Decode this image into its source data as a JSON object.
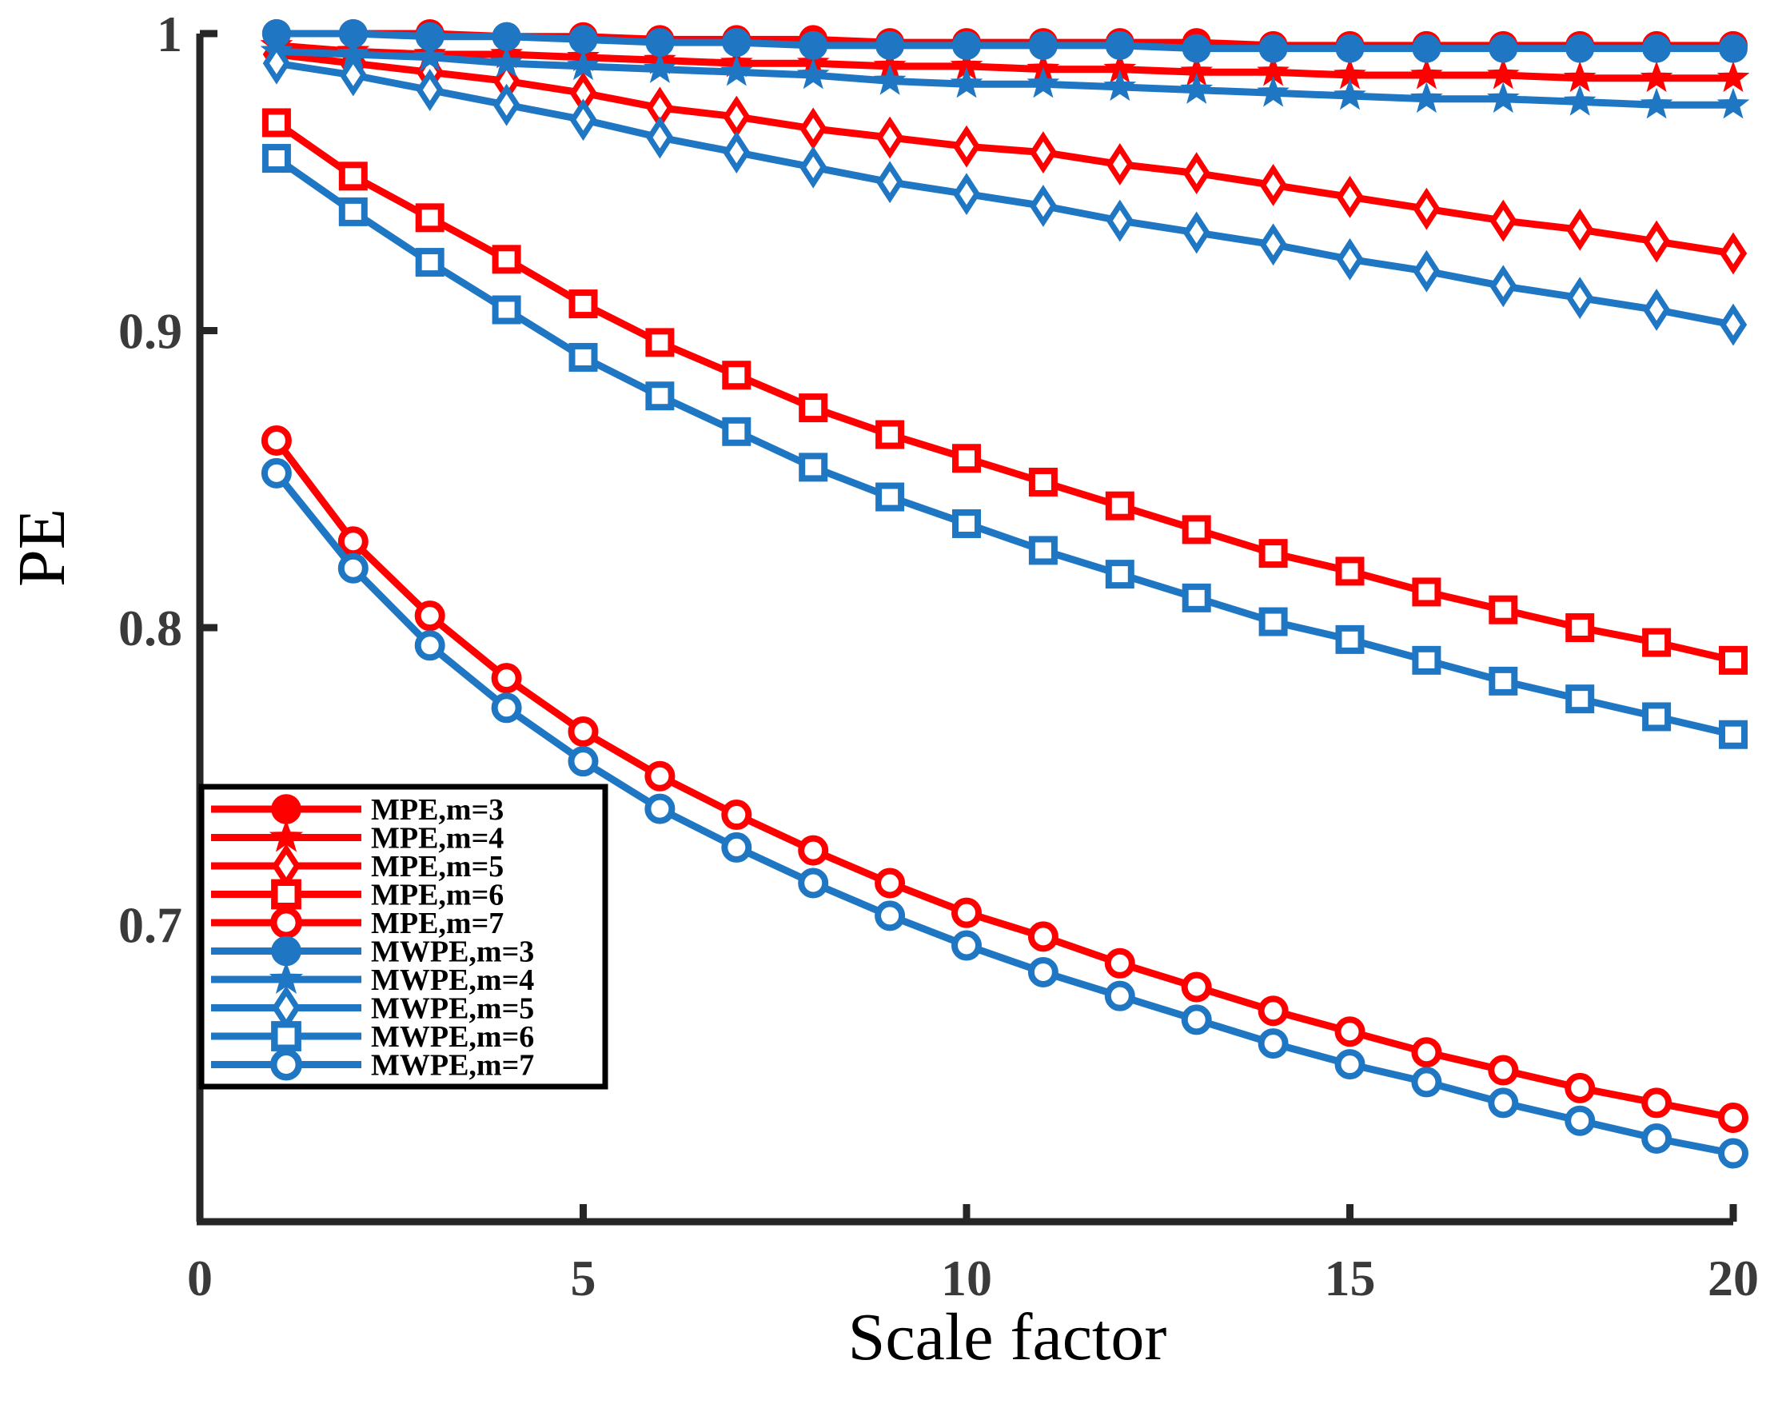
{
  "chart_data": {
    "type": "line",
    "title": "",
    "xlabel": "Scale factor",
    "ylabel": "PE",
    "xlim": [
      0,
      20
    ],
    "ylim": [
      0.6,
      1.0
    ],
    "x_ticks": [
      0,
      5,
      10,
      15,
      20
    ],
    "x_tick_labels": [
      "0",
      "5",
      "10",
      "15",
      "20"
    ],
    "y_ticks": [
      0.7,
      0.8,
      0.9,
      1.0
    ],
    "y_tick_labels": [
      "0.7",
      "0.8",
      "0.9",
      "1"
    ],
    "grid": false,
    "legend_position": "bottom-left",
    "x": [
      1,
      2,
      3,
      4,
      5,
      6,
      7,
      8,
      9,
      10,
      11,
      12,
      13,
      14,
      15,
      16,
      17,
      18,
      19,
      20
    ],
    "series": [
      {
        "name": "MPE,m=3",
        "color": "#ff0000",
        "marker": "circle-filled",
        "values": [
          1.0,
          1.0,
          1.0,
          0.999,
          0.999,
          0.998,
          0.998,
          0.998,
          0.997,
          0.997,
          0.997,
          0.997,
          0.997,
          0.996,
          0.996,
          0.996,
          0.996,
          0.996,
          0.996,
          0.996
        ]
      },
      {
        "name": "MPE,m=4",
        "color": "#ff0000",
        "marker": "star",
        "values": [
          0.996,
          0.994,
          0.993,
          0.993,
          0.992,
          0.991,
          0.99,
          0.99,
          0.989,
          0.989,
          0.988,
          0.988,
          0.987,
          0.987,
          0.986,
          0.986,
          0.986,
          0.985,
          0.985,
          0.985
        ]
      },
      {
        "name": "MPE,m=5",
        "color": "#ff0000",
        "marker": "diamond",
        "values": [
          0.993,
          0.99,
          0.987,
          0.984,
          0.98,
          0.975,
          0.972,
          0.968,
          0.965,
          0.962,
          0.96,
          0.956,
          0.953,
          0.949,
          0.945,
          0.941,
          0.937,
          0.934,
          0.93,
          0.926
        ]
      },
      {
        "name": "MPE,m=6",
        "color": "#ff0000",
        "marker": "square",
        "values": [
          0.97,
          0.952,
          0.938,
          0.924,
          0.909,
          0.896,
          0.885,
          0.874,
          0.865,
          0.857,
          0.849,
          0.841,
          0.833,
          0.825,
          0.819,
          0.812,
          0.806,
          0.8,
          0.795,
          0.789
        ]
      },
      {
        "name": "MPE,m=7",
        "color": "#ff0000",
        "marker": "circle-open",
        "values": [
          0.863,
          0.829,
          0.804,
          0.783,
          0.765,
          0.75,
          0.737,
          0.725,
          0.714,
          0.704,
          0.696,
          0.687,
          0.679,
          0.671,
          0.664,
          0.657,
          0.651,
          0.645,
          0.64,
          0.635
        ]
      },
      {
        "name": "MWPE,m=3",
        "color": "#1f77c4",
        "marker": "circle-filled",
        "values": [
          1.0,
          1.0,
          0.999,
          0.999,
          0.998,
          0.997,
          0.997,
          0.996,
          0.996,
          0.996,
          0.996,
          0.996,
          0.995,
          0.995,
          0.995,
          0.995,
          0.995,
          0.995,
          0.995,
          0.995
        ]
      },
      {
        "name": "MWPE,m=4",
        "color": "#1f77c4",
        "marker": "star",
        "values": [
          0.994,
          0.993,
          0.992,
          0.99,
          0.989,
          0.988,
          0.987,
          0.986,
          0.984,
          0.983,
          0.983,
          0.982,
          0.981,
          0.98,
          0.979,
          0.978,
          0.978,
          0.977,
          0.976,
          0.976
        ]
      },
      {
        "name": "MWPE,m=5",
        "color": "#1f77c4",
        "marker": "diamond",
        "values": [
          0.99,
          0.986,
          0.981,
          0.976,
          0.971,
          0.965,
          0.96,
          0.955,
          0.95,
          0.946,
          0.942,
          0.937,
          0.933,
          0.929,
          0.924,
          0.92,
          0.915,
          0.911,
          0.907,
          0.902
        ]
      },
      {
        "name": "MWPE,m=6",
        "color": "#1f77c4",
        "marker": "square",
        "values": [
          0.958,
          0.94,
          0.923,
          0.907,
          0.891,
          0.878,
          0.866,
          0.854,
          0.844,
          0.835,
          0.826,
          0.818,
          0.81,
          0.802,
          0.796,
          0.789,
          0.782,
          0.776,
          0.77,
          0.764
        ]
      },
      {
        "name": "MWPE,m=7",
        "color": "#1f77c4",
        "marker": "circle-open",
        "values": [
          0.852,
          0.82,
          0.794,
          0.773,
          0.755,
          0.739,
          0.726,
          0.714,
          0.703,
          0.693,
          0.684,
          0.676,
          0.668,
          0.66,
          0.653,
          0.647,
          0.64,
          0.634,
          0.628,
          0.623
        ]
      }
    ]
  }
}
